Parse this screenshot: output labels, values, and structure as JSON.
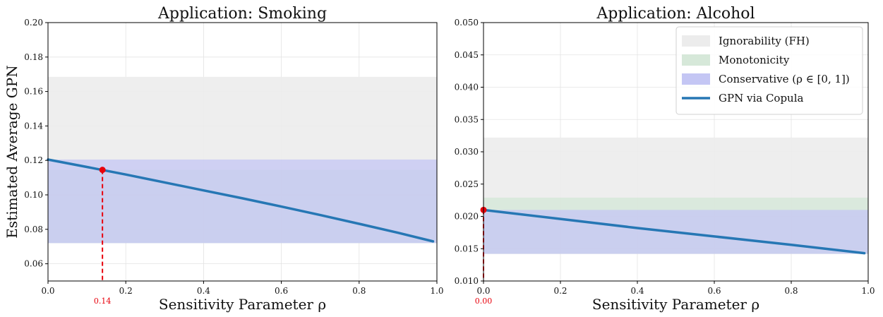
{
  "chart_data": [
    {
      "type": "line",
      "title": "Application: Smoking",
      "xlabel": "Sensitivity Parameter ρ",
      "ylabel": "Estimated Average GPN",
      "xlim": [
        0,
        1
      ],
      "ylim": [
        0.05,
        0.2
      ],
      "xticks": [
        "0.0",
        "0.2",
        "0.4",
        "0.6",
        "0.8",
        "1.0"
      ],
      "xtick_values": [
        0,
        0.2,
        0.4,
        0.6,
        0.8,
        1.0
      ],
      "yticks": [
        "0.06",
        "0.08",
        "0.10",
        "0.12",
        "0.14",
        "0.16",
        "0.18",
        "0.20"
      ],
      "ytick_values": [
        0.06,
        0.08,
        0.1,
        0.12,
        0.14,
        0.16,
        0.18,
        0.2
      ],
      "grid": true,
      "bands": [
        {
          "name": "Ignorability (FH)",
          "range": [
            0.072,
            0.1685
          ],
          "color": "#ececec"
        },
        {
          "name": "Monotonicity",
          "range": [
            0.072,
            0.1145
          ],
          "color": "#d6e8d9"
        },
        {
          "name": "Conservative (ρ ∈ [0,1])",
          "range": [
            0.072,
            0.1205
          ],
          "color": "#c4c6f4"
        }
      ],
      "series": [
        {
          "name": "GPN via Copula",
          "color": "#2677b4",
          "x": [
            0,
            0.1,
            0.2,
            0.3,
            0.4,
            0.5,
            0.6,
            0.7,
            0.8,
            0.9,
            0.99
          ],
          "y": [
            0.1205,
            0.1162,
            0.1118,
            0.1072,
            0.1026,
            0.098,
            0.0932,
            0.0883,
            0.0832,
            0.078,
            0.073
          ]
        }
      ],
      "marker": {
        "x": 0.14,
        "y": 0.1145,
        "label": "0.14",
        "color": "#e8000b"
      }
    },
    {
      "type": "line",
      "title": "Application: Alcohol",
      "xlabel": "Sensitivity Parameter ρ",
      "ylabel": "",
      "xlim": [
        0,
        1
      ],
      "ylim": [
        0.01,
        0.05
      ],
      "xticks": [
        "0.0",
        "0.2",
        "0.4",
        "0.6",
        "0.8",
        "1.0"
      ],
      "xtick_values": [
        0,
        0.2,
        0.4,
        0.6,
        0.8,
        1.0
      ],
      "yticks": [
        "0.010",
        "0.015",
        "0.020",
        "0.025",
        "0.030",
        "0.035",
        "0.040",
        "0.045",
        "0.050"
      ],
      "ytick_values": [
        0.01,
        0.015,
        0.02,
        0.025,
        0.03,
        0.035,
        0.04,
        0.045,
        0.05
      ],
      "grid": true,
      "legend_position": "top-right",
      "bands": [
        {
          "name": "Ignorability (FH)",
          "range": [
            0.0142,
            0.0322
          ],
          "color": "#ececec"
        },
        {
          "name": "Monotonicity",
          "range": [
            0.0142,
            0.0229
          ],
          "color": "#d6e8d9"
        },
        {
          "name": "Conservative (ρ ∈ [0,1])",
          "range": [
            0.0142,
            0.021
          ],
          "color": "#c4c6f4"
        }
      ],
      "series": [
        {
          "name": "GPN via Copula",
          "color": "#2677b4",
          "x": [
            0,
            0.2,
            0.4,
            0.6,
            0.8,
            0.99
          ],
          "y": [
            0.021,
            0.0196,
            0.0182,
            0.0169,
            0.0156,
            0.0143
          ]
        }
      ],
      "marker": {
        "x": 0.0,
        "y": 0.021,
        "label": "0.00",
        "color": "#e8000b"
      }
    }
  ],
  "legend": {
    "items": [
      {
        "label": "Ignorability (FH)",
        "kind": "patch",
        "color": "#ececec"
      },
      {
        "label": "Monotonicity",
        "kind": "patch",
        "color": "#d6e8d9"
      },
      {
        "label": "Conservative (ρ ∈ [0, 1])",
        "kind": "patch",
        "color": "#c4c6f4"
      },
      {
        "label": "GPN via Copula",
        "kind": "line",
        "color": "#2677b4"
      }
    ]
  }
}
